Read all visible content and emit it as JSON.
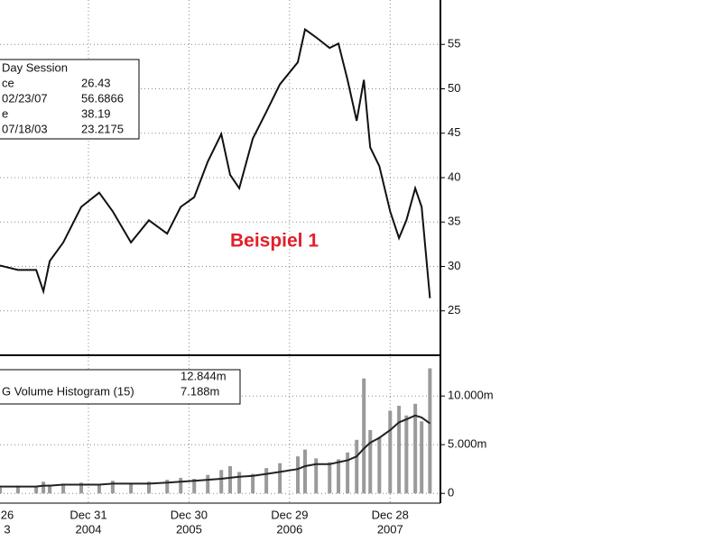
{
  "chart_data": [
    {
      "type": "line",
      "annotation": "Beispiel 1",
      "info_box": {
        "title": "Day Session",
        "rows": [
          [
            "ce",
            "26.43"
          ],
          [
            "02/23/07",
            "56.6866"
          ],
          [
            "e",
            "38.19"
          ],
          [
            "07/18/03",
            "23.2175"
          ]
        ]
      },
      "x": [
        "2004-02-15",
        "2004-04-20",
        "2004-06-25",
        "2004-07-21",
        "2004-08-13",
        "2004-10-01",
        "2004-12-05",
        "2005-02-08",
        "2005-03-29",
        "2005-06-03",
        "2005-08-07",
        "2005-10-12",
        "2005-11-30",
        "2006-01-18",
        "2006-03-08",
        "2006-04-26",
        "2006-05-28",
        "2006-06-30",
        "2006-08-18",
        "2006-10-06",
        "2006-11-24",
        "2007-01-28",
        "2007-02-23",
        "2007-04-04",
        "2007-05-23",
        "2007-06-24",
        "2007-07-27",
        "2007-08-29",
        "2007-09-24",
        "2007-10-17",
        "2007-11-19",
        "2007-12-28",
        "2008-01-29",
        "2008-02-25",
        "2008-03-28",
        "2008-04-20",
        "2008-05-20"
      ],
      "series": [
        {
          "color": "#111111",
          "values": [
            30.1,
            29.6,
            29.6,
            27.2,
            30.6,
            32.7,
            36.7,
            38.3,
            36.2,
            32.7,
            35.2,
            33.7,
            36.7,
            37.8,
            41.8,
            44.9,
            40.3,
            38.8,
            44.4,
            47.4,
            50.5,
            53.0,
            56.6866,
            55.8,
            54.6,
            55.1,
            51.0,
            46.4,
            51.0,
            43.4,
            41.3,
            36.2,
            33.2,
            35.2,
            38.8,
            36.7,
            26.43
          ]
        }
      ],
      "xlim": [
        "2004-02-15",
        "2008-06-27"
      ],
      "xticks": [
        {
          "value": "2003-12-26",
          "label": [
            "26",
            "3"
          ]
        },
        {
          "value": "2004-12-31",
          "label": [
            "Dec 31",
            "2004"
          ]
        },
        {
          "value": "2005-12-30",
          "label": [
            "Dec 30",
            "2005"
          ]
        },
        {
          "value": "2006-12-29",
          "label": [
            "Dec 29",
            "2006"
          ]
        },
        {
          "value": "2007-12-28",
          "label": [
            "Dec 28",
            "2007"
          ]
        }
      ],
      "ylim": [
        20,
        60
      ],
      "yticks": [
        25,
        30,
        35,
        40,
        45,
        50,
        55
      ],
      "grid": true
    },
    {
      "type": "bar",
      "info_box": {
        "rows": [
          [
            "",
            "12.844m"
          ],
          [
            "G Volume Histogram (15)",
            "7.188m"
          ]
        ]
      },
      "x": [
        "2004-02-15",
        "2004-04-20",
        "2004-06-25",
        "2004-07-21",
        "2004-08-13",
        "2004-10-01",
        "2004-12-05",
        "2005-02-08",
        "2005-03-29",
        "2005-06-03",
        "2005-08-07",
        "2005-10-12",
        "2005-11-30",
        "2006-01-18",
        "2006-03-08",
        "2006-04-26",
        "2006-05-28",
        "2006-06-30",
        "2006-08-18",
        "2006-10-06",
        "2006-11-24",
        "2007-01-28",
        "2007-02-23",
        "2007-04-04",
        "2007-05-23",
        "2007-06-24",
        "2007-07-27",
        "2007-08-29",
        "2007-09-24",
        "2007-10-17",
        "2007-11-19",
        "2007-12-28",
        "2008-01-29",
        "2008-02-25",
        "2008-03-28",
        "2008-04-20",
        "2008-05-20"
      ],
      "series": [
        {
          "color": "#9a9a9a",
          "values": [
            0.6,
            0.8,
            0.7,
            1.2,
            0.9,
            1.0,
            1.1,
            0.9,
            1.3,
            1.0,
            1.2,
            1.4,
            1.6,
            1.5,
            1.9,
            2.4,
            2.8,
            2.2,
            2.0,
            2.6,
            3.1,
            3.8,
            4.5,
            3.6,
            3.2,
            3.5,
            4.2,
            5.5,
            11.8,
            6.5,
            5.8,
            8.5,
            9.0,
            8.0,
            9.2,
            7.4,
            12.844
          ]
        },
        {
          "type": "line",
          "color": "#222222",
          "values": [
            0.7,
            0.7,
            0.7,
            0.8,
            0.8,
            0.9,
            0.9,
            0.9,
            1.0,
            1.0,
            1.0,
            1.1,
            1.2,
            1.3,
            1.4,
            1.5,
            1.6,
            1.7,
            1.8,
            2.0,
            2.2,
            2.5,
            2.8,
            3.0,
            3.0,
            3.2,
            3.4,
            3.8,
            4.6,
            5.2,
            5.7,
            6.5,
            7.3,
            7.6,
            8.0,
            7.8,
            7.188
          ]
        }
      ],
      "xlim": [
        "2004-02-15",
        "2008-06-27"
      ],
      "ylim": [
        -1,
        14
      ],
      "yticks": [
        {
          "value": 0,
          "label": "0"
        },
        {
          "value": 5,
          "label": "5.000m"
        },
        {
          "value": 10,
          "label": "10.000m"
        }
      ],
      "grid": true
    }
  ]
}
